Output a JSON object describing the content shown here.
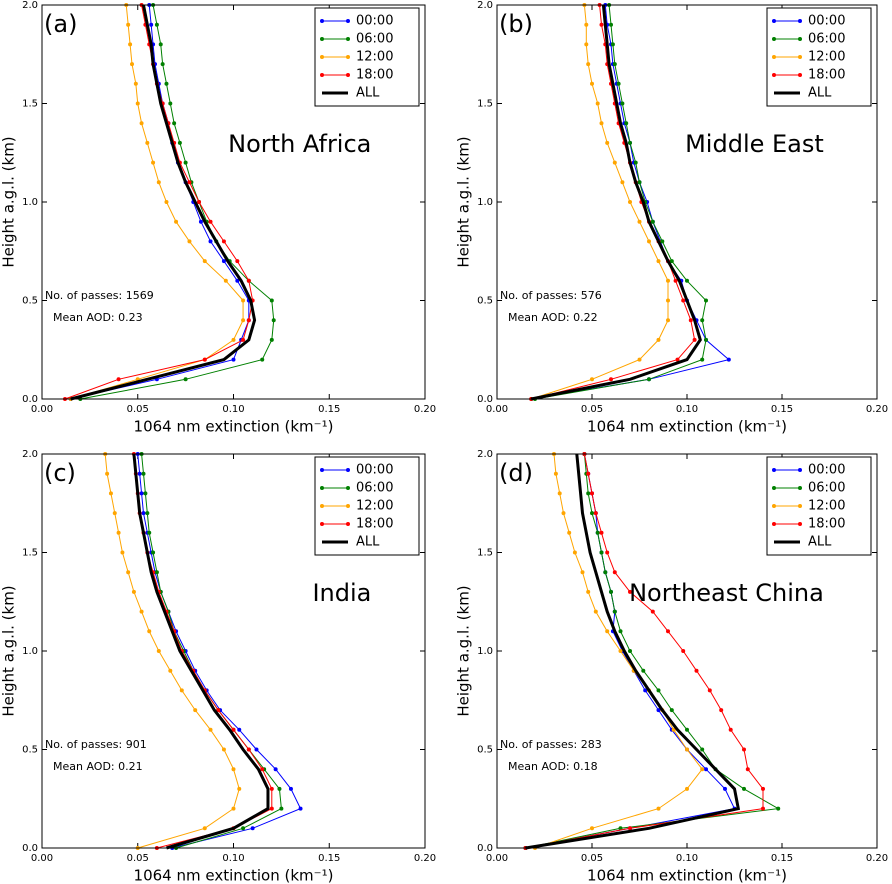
{
  "chart_data": [
    {
      "type": "line",
      "panel_label": "(a)",
      "title": "North Africa",
      "annotations": [
        "No. of passes: 1569",
        "Mean AOD: 0.23"
      ],
      "xlabel": "1064 nm extinction (km⁻¹)",
      "ylabel": "Height a.g.l. (km)",
      "legend": "upper right",
      "xlim": [
        0,
        0.2
      ],
      "ylim": [
        0,
        2
      ],
      "xticks": [
        {
          "value": 0,
          "label": "0.00"
        },
        {
          "value": 0.05,
          "label": "0.05"
        },
        {
          "value": 0.1,
          "label": "0.10"
        },
        {
          "value": 0.15,
          "label": "0.15"
        },
        {
          "value": 0.2,
          "label": "0.20"
        }
      ],
      "yticks": [
        {
          "value": 0,
          "label": "0.0"
        },
        {
          "value": 0.5,
          "label": "0.5"
        },
        {
          "value": 1,
          "label": "1.0"
        },
        {
          "value": 1.5,
          "label": "1.5"
        },
        {
          "value": 2,
          "label": "2.0"
        }
      ],
      "y": [
        0,
        0.1,
        0.2,
        0.3,
        0.4,
        0.5,
        0.6,
        0.7,
        0.8,
        0.9,
        1.0,
        1.1,
        1.2,
        1.3,
        1.4,
        1.5,
        1.6,
        1.7,
        1.8,
        1.9,
        2.0
      ],
      "series": [
        {
          "name": "00:00",
          "color": "#0000ff",
          "markers": true,
          "width": 1,
          "values": [
            0.015,
            0.06,
            0.1,
            0.104,
            0.108,
            0.108,
            0.102,
            0.095,
            0.088,
            0.083,
            0.079,
            0.075,
            0.071,
            0.068,
            0.066,
            0.063,
            0.061,
            0.059,
            0.058,
            0.057,
            0.056
          ]
        },
        {
          "name": "06:00",
          "color": "#008000",
          "markers": true,
          "width": 1,
          "values": [
            0.02,
            0.075,
            0.115,
            0.12,
            0.121,
            0.12,
            0.108,
            0.098,
            0.091,
            0.086,
            0.082,
            0.078,
            0.075,
            0.072,
            0.069,
            0.067,
            0.065,
            0.063,
            0.062,
            0.06,
            0.058
          ]
        },
        {
          "name": "12:00",
          "color": "#ffa500",
          "markers": true,
          "width": 1,
          "values": [
            0.015,
            0.05,
            0.085,
            0.1,
            0.105,
            0.105,
            0.096,
            0.085,
            0.077,
            0.07,
            0.065,
            0.061,
            0.058,
            0.055,
            0.052,
            0.05,
            0.049,
            0.047,
            0.046,
            0.045,
            0.044
          ]
        },
        {
          "name": "18:00",
          "color": "#ff0000",
          "markers": true,
          "width": 1,
          "values": [
            0.012,
            0.04,
            0.085,
            0.105,
            0.108,
            0.11,
            0.108,
            0.102,
            0.095,
            0.088,
            0.082,
            0.077,
            0.072,
            0.069,
            0.066,
            0.063,
            0.06,
            0.058,
            0.056,
            0.054,
            0.052
          ]
        },
        {
          "name": "ALL",
          "color": "#000000",
          "markers": false,
          "width": 3,
          "values": [
            0.015,
            0.055,
            0.095,
            0.108,
            0.111,
            0.109,
            0.104,
            0.097,
            0.091,
            0.085,
            0.08,
            0.075,
            0.071,
            0.068,
            0.065,
            0.062,
            0.06,
            0.058,
            0.057,
            0.055,
            0.053
          ]
        }
      ]
    },
    {
      "type": "line",
      "panel_label": "(b)",
      "title": "Middle East",
      "annotations": [
        "No. of passes: 576",
        "Mean AOD: 0.22"
      ],
      "xlabel": "1064 nm extinction (km⁻¹)",
      "ylabel": "Height a.g.l. (km)",
      "legend": "upper right",
      "xlim": [
        0,
        0.2
      ],
      "ylim": [
        0,
        2
      ],
      "xticks": [
        {
          "value": 0,
          "label": "0.00"
        },
        {
          "value": 0.05,
          "label": "0.05"
        },
        {
          "value": 0.1,
          "label": "0.10"
        },
        {
          "value": 0.15,
          "label": "0.15"
        },
        {
          "value": 0.2,
          "label": "0.20"
        }
      ],
      "yticks": [
        {
          "value": 0,
          "label": "0.0"
        },
        {
          "value": 0.5,
          "label": "0.5"
        },
        {
          "value": 1,
          "label": "1.0"
        },
        {
          "value": 1.5,
          "label": "1.5"
        },
        {
          "value": 2,
          "label": "2.0"
        }
      ],
      "y": [
        0,
        0.1,
        0.2,
        0.3,
        0.4,
        0.5,
        0.6,
        0.7,
        0.8,
        0.9,
        1.0,
        1.1,
        1.2,
        1.3,
        1.4,
        1.5,
        1.6,
        1.7,
        1.8,
        1.9,
        2.0
      ],
      "series": [
        {
          "name": "00:00",
          "color": "#0000ff",
          "markers": true,
          "width": 1,
          "values": [
            0.018,
            0.08,
            0.122,
            0.11,
            0.105,
            0.1,
            0.097,
            0.09,
            0.086,
            0.082,
            0.079,
            0.075,
            0.072,
            0.07,
            0.067,
            0.065,
            0.063,
            0.061,
            0.06,
            0.058,
            0.057
          ]
        },
        {
          "name": "06:00",
          "color": "#008000",
          "markers": true,
          "width": 1,
          "values": [
            0.02,
            0.08,
            0.108,
            0.11,
            0.108,
            0.11,
            0.1,
            0.092,
            0.087,
            0.082,
            0.078,
            0.075,
            0.073,
            0.07,
            0.068,
            0.066,
            0.064,
            0.062,
            0.061,
            0.06,
            0.059
          ]
        },
        {
          "name": "12:00",
          "color": "#ffa500",
          "markers": true,
          "width": 1,
          "values": [
            0.018,
            0.05,
            0.075,
            0.085,
            0.09,
            0.09,
            0.09,
            0.085,
            0.08,
            0.075,
            0.07,
            0.066,
            0.062,
            0.058,
            0.055,
            0.053,
            0.05,
            0.048,
            0.047,
            0.047,
            0.046
          ]
        },
        {
          "name": "18:00",
          "color": "#ff0000",
          "markers": true,
          "width": 1,
          "values": [
            0.018,
            0.06,
            0.095,
            0.104,
            0.102,
            0.098,
            0.094,
            0.09,
            0.085,
            0.08,
            0.076,
            0.073,
            0.07,
            0.067,
            0.064,
            0.062,
            0.06,
            0.058,
            0.057,
            0.055,
            0.054
          ]
        },
        {
          "name": "ALL",
          "color": "#000000",
          "markers": false,
          "width": 3,
          "values": [
            0.018,
            0.07,
            0.1,
            0.107,
            0.104,
            0.1,
            0.096,
            0.09,
            0.085,
            0.08,
            0.077,
            0.073,
            0.07,
            0.068,
            0.065,
            0.063,
            0.061,
            0.059,
            0.058,
            0.057,
            0.056
          ]
        }
      ]
    },
    {
      "type": "line",
      "panel_label": "(c)",
      "title": "India",
      "annotations": [
        "No. of passes: 901",
        "Mean AOD: 0.21"
      ],
      "xlabel": "1064 nm extinction (km⁻¹)",
      "ylabel": "Height a.g.l. (km)",
      "legend": "upper right",
      "xlim": [
        0,
        0.2
      ],
      "ylim": [
        0,
        2
      ],
      "xticks": [
        {
          "value": 0,
          "label": "0.00"
        },
        {
          "value": 0.05,
          "label": "0.05"
        },
        {
          "value": 0.1,
          "label": "0.10"
        },
        {
          "value": 0.15,
          "label": "0.15"
        },
        {
          "value": 0.2,
          "label": "0.20"
        }
      ],
      "yticks": [
        {
          "value": 0,
          "label": "0.0"
        },
        {
          "value": 0.5,
          "label": "0.5"
        },
        {
          "value": 1,
          "label": "1.0"
        },
        {
          "value": 1.5,
          "label": "1.5"
        },
        {
          "value": 2,
          "label": "2.0"
        }
      ],
      "y": [
        0,
        0.1,
        0.2,
        0.3,
        0.4,
        0.5,
        0.6,
        0.7,
        0.8,
        0.9,
        1.0,
        1.1,
        1.2,
        1.3,
        1.4,
        1.5,
        1.6,
        1.7,
        1.8,
        1.9,
        2.0
      ],
      "series": [
        {
          "name": "00:00",
          "color": "#0000ff",
          "markers": true,
          "width": 1,
          "values": [
            0.068,
            0.11,
            0.135,
            0.13,
            0.122,
            0.112,
            0.103,
            0.093,
            0.086,
            0.08,
            0.075,
            0.07,
            0.066,
            0.062,
            0.059,
            0.057,
            0.055,
            0.053,
            0.052,
            0.051,
            0.05
          ]
        },
        {
          "name": "06:00",
          "color": "#008000",
          "markers": true,
          "width": 1,
          "values": [
            0.07,
            0.105,
            0.125,
            0.124,
            0.116,
            0.108,
            0.1,
            0.092,
            0.085,
            0.079,
            0.074,
            0.069,
            0.066,
            0.062,
            0.06,
            0.058,
            0.056,
            0.055,
            0.054,
            0.053,
            0.052
          ]
        },
        {
          "name": "12:00",
          "color": "#ffa500",
          "markers": true,
          "width": 1,
          "values": [
            0.05,
            0.085,
            0.1,
            0.103,
            0.1,
            0.095,
            0.088,
            0.08,
            0.073,
            0.067,
            0.061,
            0.056,
            0.052,
            0.048,
            0.045,
            0.042,
            0.04,
            0.038,
            0.036,
            0.034,
            0.033
          ]
        },
        {
          "name": "18:00",
          "color": "#ff0000",
          "markers": true,
          "width": 1,
          "values": [
            0.06,
            0.1,
            0.12,
            0.12,
            0.115,
            0.108,
            0.1,
            0.092,
            0.085,
            0.079,
            0.073,
            0.069,
            0.065,
            0.061,
            0.058,
            0.055,
            0.053,
            0.051,
            0.05,
            0.049,
            0.048
          ]
        },
        {
          "name": "ALL",
          "color": "#000000",
          "markers": false,
          "width": 3,
          "values": [
            0.065,
            0.1,
            0.118,
            0.118,
            0.113,
            0.105,
            0.098,
            0.09,
            0.084,
            0.078,
            0.072,
            0.068,
            0.064,
            0.06,
            0.057,
            0.055,
            0.053,
            0.051,
            0.05,
            0.049,
            0.048
          ]
        }
      ]
    },
    {
      "type": "line",
      "panel_label": "(d)",
      "title": "Northeast China",
      "annotations": [
        "No. of passes: 283",
        "Mean AOD: 0.18"
      ],
      "xlabel": "1064 nm extinction (km⁻¹)",
      "ylabel": "Height a.g.l. (km)",
      "legend": "upper right",
      "xlim": [
        0,
        0.2
      ],
      "ylim": [
        0,
        2
      ],
      "xticks": [
        {
          "value": 0,
          "label": "0.00"
        },
        {
          "value": 0.05,
          "label": "0.05"
        },
        {
          "value": 0.1,
          "label": "0.10"
        },
        {
          "value": 0.15,
          "label": "0.15"
        },
        {
          "value": 0.2,
          "label": "0.20"
        }
      ],
      "yticks": [
        {
          "value": 0,
          "label": "0.0"
        },
        {
          "value": 0.5,
          "label": "0.5"
        },
        {
          "value": 1,
          "label": "1.0"
        },
        {
          "value": 1.5,
          "label": "1.5"
        },
        {
          "value": 2,
          "label": "2.0"
        }
      ],
      "y": [
        0,
        0.1,
        0.2,
        0.3,
        0.4,
        0.5,
        0.6,
        0.7,
        0.8,
        0.9,
        1.0,
        1.1,
        1.2,
        1.3,
        1.4,
        1.5,
        1.6,
        1.7,
        1.8,
        1.9,
        2.0
      ],
      "series": [
        {
          "name": "00:00",
          "color": "#0000ff",
          "markers": true,
          "width": 1,
          "values": [
            0.015,
            0.07,
            0.125,
            0.12,
            0.11,
            0.1,
            0.092,
            0.085,
            0.078,
            0.072,
            0.066,
            0.061,
            0.062,
            0.06,
            0.057,
            0.055,
            0.053,
            0.052,
            0.05,
            0.048,
            0.046
          ]
        },
        {
          "name": "06:00",
          "color": "#008000",
          "markers": true,
          "width": 1,
          "values": [
            0.015,
            0.065,
            0.148,
            0.13,
            0.115,
            0.108,
            0.1,
            0.092,
            0.085,
            0.077,
            0.07,
            0.065,
            0.062,
            0.06,
            0.057,
            0.055,
            0.053,
            0.05,
            0.048,
            0.047,
            0.046
          ]
        },
        {
          "name": "12:00",
          "color": "#ffa500",
          "markers": true,
          "width": 1,
          "values": [
            0.02,
            0.05,
            0.085,
            0.1,
            0.108,
            0.1,
            0.093,
            0.087,
            0.08,
            0.072,
            0.065,
            0.058,
            0.052,
            0.048,
            0.045,
            0.041,
            0.038,
            0.035,
            0.033,
            0.031,
            0.03
          ]
        },
        {
          "name": "18:00",
          "color": "#ff0000",
          "markers": true,
          "width": 1,
          "values": [
            0.015,
            0.07,
            0.14,
            0.14,
            0.132,
            0.13,
            0.123,
            0.118,
            0.112,
            0.105,
            0.098,
            0.09,
            0.082,
            0.07,
            0.062,
            0.058,
            0.055,
            0.052,
            0.05,
            0.048,
            0.046
          ]
        },
        {
          "name": "ALL",
          "color": "#000000",
          "markers": false,
          "width": 3,
          "values": [
            0.015,
            0.08,
            0.127,
            0.125,
            0.115,
            0.105,
            0.095,
            0.087,
            0.08,
            0.073,
            0.067,
            0.062,
            0.058,
            0.055,
            0.052,
            0.049,
            0.047,
            0.045,
            0.044,
            0.043,
            0.042
          ]
        }
      ]
    }
  ]
}
